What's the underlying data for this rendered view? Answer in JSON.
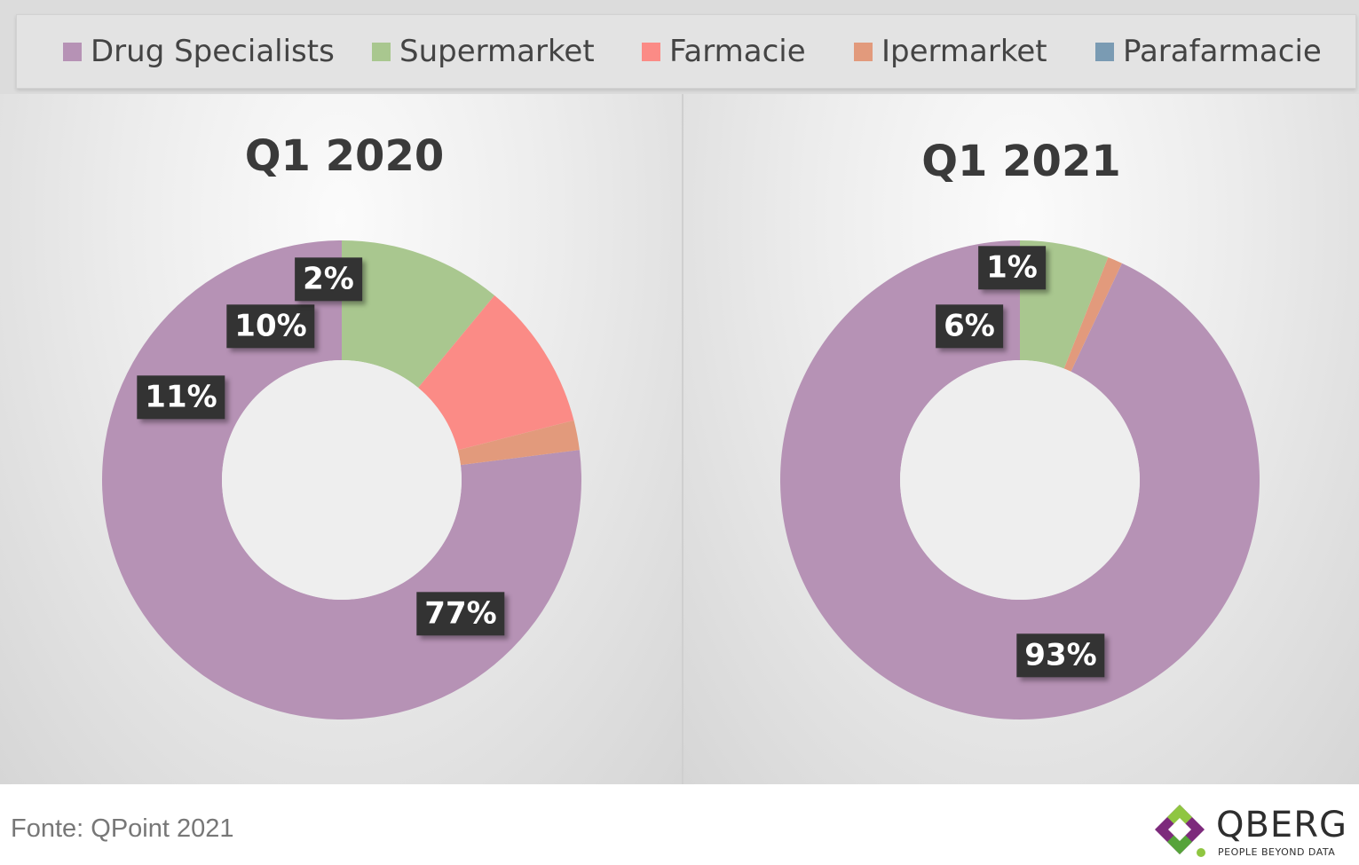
{
  "colors": {
    "Drug Specialists": "#b692b5",
    "Supermarket": "#a9c78f",
    "Farmacie": "#fb8b86",
    "Ipermarket": "#e29a7c",
    "Parafarmacie": "#7a9bb3"
  },
  "chart_data": [
    {
      "type": "pie",
      "donut": true,
      "title": "Q1 2020",
      "legend_position": "top",
      "categories": [
        "Drug Specialists",
        "Supermarket",
        "Farmacie",
        "Ipermarket",
        "Parafarmacie"
      ],
      "values": [
        77,
        11,
        10,
        2,
        0
      ],
      "data_labels": [
        "77%",
        "11%",
        "10%",
        "2%",
        ""
      ]
    },
    {
      "type": "pie",
      "donut": true,
      "title": "Q1 2021",
      "legend_position": "top",
      "categories": [
        "Drug Specialists",
        "Supermarket",
        "Farmacie",
        "Ipermarket",
        "Parafarmacie"
      ],
      "values": [
        93,
        6,
        0,
        1,
        0
      ],
      "data_labels": [
        "93%",
        "6%",
        "",
        "1%",
        ""
      ]
    }
  ],
  "source": "Fonte: QPoint 2021",
  "brand": {
    "name": "QBERG",
    "tagline": "PEOPLE BEYOND DATA",
    "icon": "qberg-diamond-logo-icon"
  }
}
